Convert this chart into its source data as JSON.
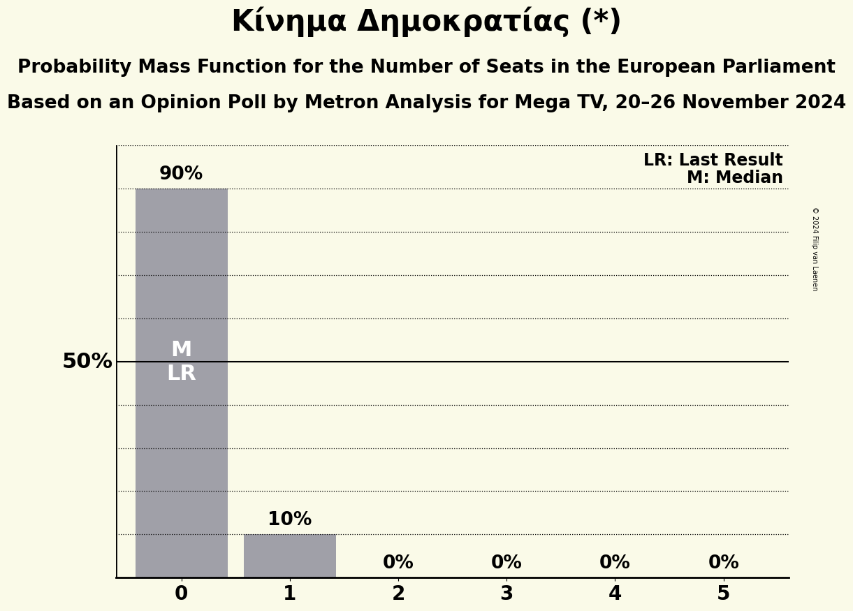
{
  "title": "Κίνημα Δημοκρατίας (*)",
  "subtitle1": "Probability Mass Function for the Number of Seats in the European Parliament",
  "subtitle2": "Based on an Opinion Poll by Metron Analysis for Mega TV, 20–26 November 2024",
  "copyright": "© 2024 Filip van Laenen",
  "categories": [
    0,
    1,
    2,
    3,
    4,
    5
  ],
  "values": [
    0.9,
    0.1,
    0.0,
    0.0,
    0.0,
    0.0
  ],
  "bar_color": "#a0a0a8",
  "background_color": "#fafae8",
  "bar_labels": [
    "90%",
    "10%",
    "0%",
    "0%",
    "0%",
    "0%"
  ],
  "M_label": "M",
  "LR_label": "LR",
  "legend_lr": "LR: Last Result",
  "legend_m": "M: Median",
  "ylabel_50": "50%",
  "ylim": [
    0,
    1.0
  ],
  "title_fontsize": 30,
  "subtitle_fontsize": 19,
  "bar_label_fontsize": 19,
  "inner_label_fontsize": 22,
  "legend_fontsize": 17,
  "ylabel_fontsize": 22,
  "tick_fontsize": 20
}
